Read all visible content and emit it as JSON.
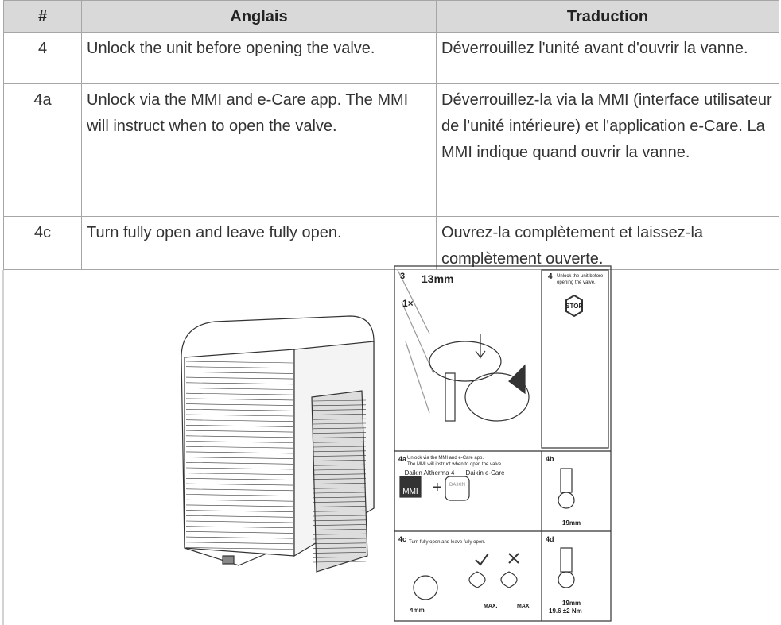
{
  "table": {
    "header": [
      "#",
      "Anglais",
      "Traduction"
    ],
    "rows": [
      [
        "4",
        "Unlock the unit before opening the valve.",
        "Déverrouillez l'unité avant d'ouvrir la vanne."
      ],
      [
        "4a",
        "Unlock via the MMI and e-Care app. The MMI will instruct when to open the valve.",
        "Déverrouillez-la via la MMI (interface utilisateur de l'unité intérieure) et l'application e-Care. La MMI indique quand ouvrir la vanne."
      ],
      [
        "4c",
        "Turn fully open and leave fully open.",
        "Ouvrez-la complètement et laissez-la complètement ouverte."
      ]
    ]
  },
  "figure": {
    "step3": {
      "number": "3",
      "size": "13mm",
      "count": "1×"
    },
    "step4": {
      "number": "4",
      "caption": [
        "Unlock the unit before",
        "opening the valve."
      ],
      "sign": "STOP"
    },
    "step4a": {
      "number": "4a",
      "caption": [
        "Unlock via the MMI and e-Care app.",
        "The MMI will instruct when to open the valve."
      ],
      "labels": [
        "Daikin Altherma 4",
        "Daikin e-Care"
      ],
      "screen": "MMI",
      "logo": "DAIKIN"
    },
    "step4b": {
      "number": "4b",
      "size": "19mm"
    },
    "step4c": {
      "number": "4c",
      "caption": [
        "Turn fully open and leave fully open."
      ],
      "tool": "4mm",
      "max": [
        "MAX.",
        "MAX."
      ]
    },
    "step4d": {
      "number": "4d",
      "size": "19mm",
      "torque": "19.6 ±2 Nm"
    }
  }
}
